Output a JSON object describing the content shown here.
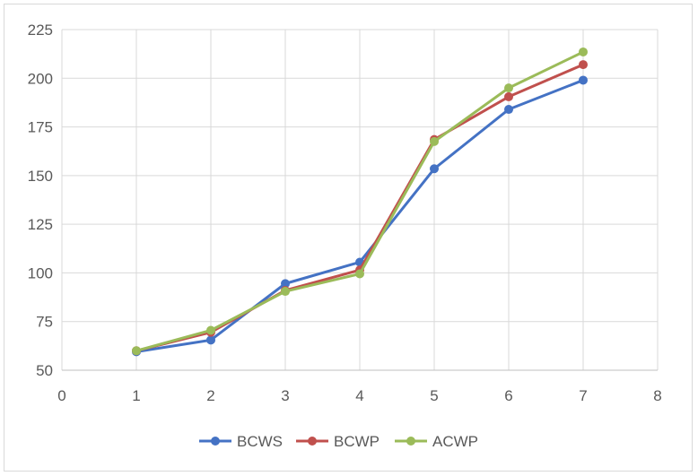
{
  "chart_data": {
    "type": "line",
    "title": "",
    "xlabel": "",
    "ylabel": "",
    "xlim": [
      0,
      8
    ],
    "ylim": [
      50,
      225
    ],
    "x_ticks": [
      "0",
      "1",
      "2",
      "3",
      "4",
      "5",
      "6",
      "7",
      "8"
    ],
    "y_ticks": [
      "50",
      "75",
      "100",
      "125",
      "150",
      "175",
      "200",
      "225"
    ],
    "grid": true,
    "legend_position": "bottom",
    "x": [
      1,
      2,
      3,
      4,
      5,
      6,
      7
    ],
    "series": [
      {
        "name": "BCWS",
        "color": "#4472c4",
        "values": [
          59.5,
          65.5,
          94.5,
          105.5,
          153.5,
          184,
          199
        ]
      },
      {
        "name": "BCWP",
        "color": "#c0504d",
        "values": [
          60,
          69.5,
          91,
          101.5,
          168.5,
          190.5,
          207
        ]
      },
      {
        "name": "ACWP",
        "color": "#9bbb59",
        "values": [
          60,
          70.5,
          90.5,
          99.5,
          167.5,
          195,
          213.5
        ]
      }
    ]
  }
}
